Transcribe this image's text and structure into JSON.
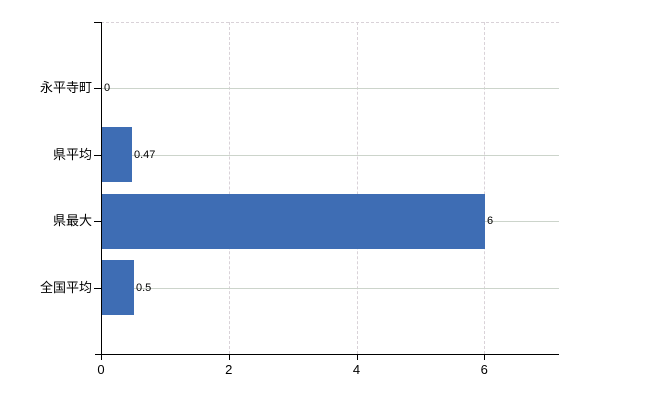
{
  "chart_data": {
    "type": "bar",
    "orientation": "horizontal",
    "title": "",
    "categories": [
      "永平寺町",
      "県平均",
      "県最大",
      "全国平均"
    ],
    "values": [
      0,
      0.47,
      6,
      0.5
    ],
    "value_labels": [
      "0",
      "0.47",
      "6",
      "0.5"
    ],
    "x_tick_values": [
      0,
      2,
      4,
      6
    ],
    "x_tick_labels": [
      "0",
      "2",
      "4",
      "6"
    ],
    "xlim": [
      0,
      7.17
    ],
    "grid": "on",
    "legend": "none",
    "colors": {
      "bar": "#3e6db4",
      "h_grid": "#ccd4cb",
      "v_grid": "#d9d2d8",
      "axis": "#000000",
      "text": "#000000",
      "background": "#ffffff"
    }
  }
}
